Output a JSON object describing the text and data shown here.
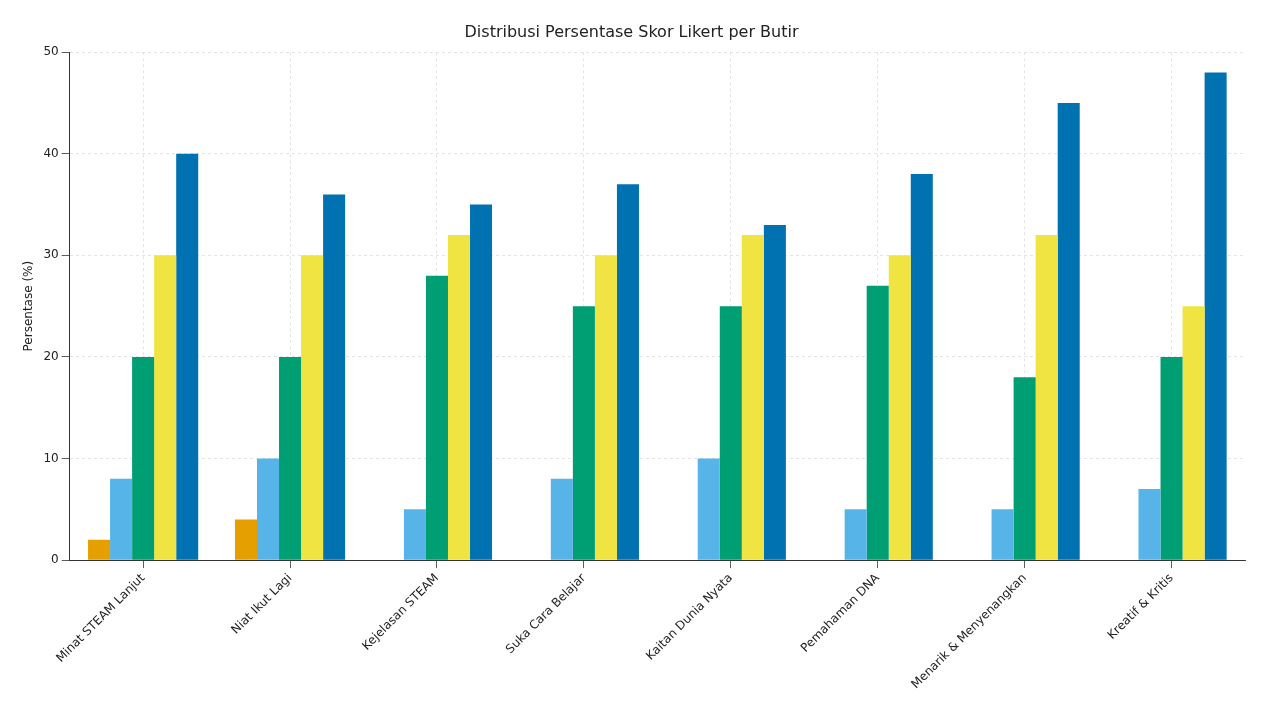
{
  "chart_data": {
    "type": "bar",
    "title": "Distribusi Persentase Skor Likert per Butir",
    "ylabel": "Persentase (%)",
    "categories": [
      "Minat STEAM Lanjut",
      "Niat Ikut Lagi",
      "Kejelasan STEAM",
      "Suka Cara Belajar",
      "Kaitan Dunia Nyata",
      "Pemahaman DNA",
      "Menarik & Menyenangkan",
      "Kreatif & Kritis"
    ],
    "series": [
      {
        "color": "#e69f00",
        "values": [
          2,
          4,
          0,
          0,
          0,
          0,
          0,
          0
        ]
      },
      {
        "color": "#56b4e9",
        "values": [
          8,
          10,
          5,
          8,
          10,
          5,
          5,
          7
        ]
      },
      {
        "color": "#009e73",
        "values": [
          20,
          20,
          28,
          25,
          25,
          27,
          18,
          20
        ]
      },
      {
        "color": "#f0e442",
        "values": [
          30,
          30,
          32,
          30,
          32,
          30,
          32,
          25
        ]
      },
      {
        "color": "#0072b2",
        "values": [
          40,
          36,
          35,
          37,
          33,
          38,
          45,
          48
        ]
      }
    ],
    "ylim": [
      0,
      50
    ],
    "yticks": [
      0,
      10,
      20,
      30,
      40,
      50
    ],
    "grid": true
  }
}
